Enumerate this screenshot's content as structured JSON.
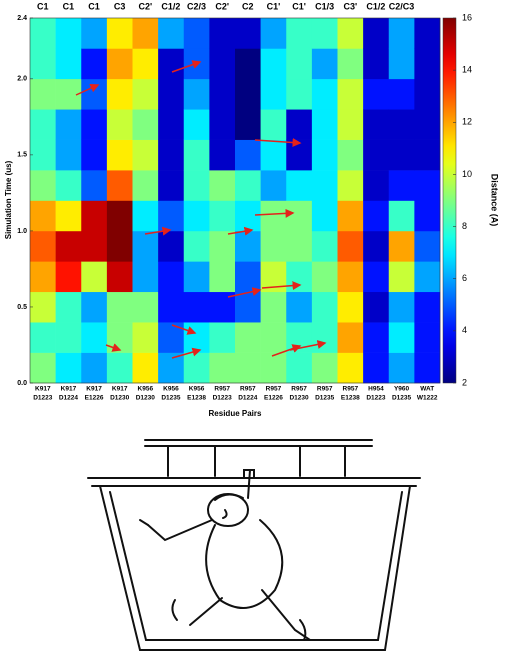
{
  "chart_data": {
    "type": "heatmap",
    "column_labels": [
      "C1",
      "C1",
      "C1",
      "C3",
      "C2'",
      "C1/2",
      "C2/3",
      "C2'",
      "C2",
      "C1'",
      "C1'",
      "C1/3",
      "C3'",
      "C1/2",
      "C2/C3",
      null
    ],
    "categories": [
      [
        "K917",
        "D1223"
      ],
      [
        "K917",
        "D1224"
      ],
      [
        "K917",
        "E1226"
      ],
      [
        "K917",
        "D1230"
      ],
      [
        "K956",
        "D1230"
      ],
      [
        "K956",
        "D1235"
      ],
      [
        "K956",
        "E1238"
      ],
      [
        "R957",
        "D1223"
      ],
      [
        "R957",
        "D1224"
      ],
      [
        "R957",
        "E1226"
      ],
      [
        "R957",
        "D1230"
      ],
      [
        "R957",
        "D1235"
      ],
      [
        "R957",
        "E1238"
      ],
      [
        "H954",
        "D1223"
      ],
      [
        "Y960",
        "D1235"
      ],
      [
        "WAT",
        "W1222"
      ]
    ],
    "bins": [
      0,
      0.2,
      0.4,
      0.6,
      0.8,
      1.0,
      1.2,
      1.4,
      1.6,
      1.8,
      2.0,
      2.2,
      2.4
    ],
    "values": [
      [
        9,
        8,
        10,
        12,
        13,
        12,
        9,
        8,
        8,
        9,
        8,
        8
      ],
      [
        7,
        8,
        8,
        14,
        15,
        11,
        8,
        6,
        6,
        9,
        7,
        7
      ],
      [
        6,
        7,
        6,
        10,
        15,
        15,
        5,
        4,
        4,
        5,
        4,
        6
      ],
      [
        8,
        9,
        9,
        15,
        16,
        16,
        13,
        11,
        10,
        11,
        12,
        11
      ],
      [
        11,
        10,
        9,
        6,
        6,
        7,
        9,
        10,
        9,
        10,
        11,
        12
      ],
      [
        6,
        5,
        4,
        4,
        3,
        5,
        3,
        3,
        3,
        3,
        3,
        6
      ],
      [
        8,
        7,
        4,
        6,
        8,
        7,
        8,
        8,
        7,
        6,
        5,
        5
      ],
      [
        9,
        8,
        4,
        9,
        9,
        8,
        9,
        3,
        3,
        3,
        3,
        3
      ],
      [
        9,
        9,
        5,
        5,
        6,
        7,
        8,
        5,
        2,
        2,
        2,
        3
      ],
      [
        9,
        9,
        9,
        10,
        9,
        9,
        6,
        7,
        8,
        7,
        7,
        6
      ],
      [
        8,
        8,
        6,
        8,
        9,
        9,
        7,
        3,
        3,
        8,
        8,
        8
      ],
      [
        9,
        8,
        8,
        9,
        8,
        7,
        7,
        7,
        7,
        7,
        6,
        8
      ],
      [
        11,
        12,
        11,
        12,
        13,
        12,
        10,
        9,
        10,
        10,
        9,
        10
      ],
      [
        4,
        4,
        3,
        4,
        3,
        4,
        3,
        3,
        3,
        4,
        3,
        3
      ],
      [
        6,
        7,
        6,
        10,
        12,
        8,
        4,
        3,
        3,
        4,
        6,
        6
      ],
      [
        4,
        4,
        4,
        6,
        5,
        4,
        4,
        3,
        3,
        3,
        3,
        3
      ]
    ],
    "colormap": "jet",
    "ylabel": "Simulation Time (us)",
    "xlabel": "Residue Pairs",
    "colorbar_label": "Distance (A)",
    "ylim": [
      0,
      2.4
    ],
    "yticks": [
      {
        "value": 0,
        "label": "0.0"
      },
      0.5,
      {
        "value": 1,
        "label": "1.0"
      },
      1.5,
      {
        "value": 2,
        "label": "2.0"
      },
      2.4
    ],
    "clim": [
      2,
      16
    ],
    "cticks": [
      2,
      4,
      6,
      8,
      10,
      12,
      14,
      16
    ]
  }
}
